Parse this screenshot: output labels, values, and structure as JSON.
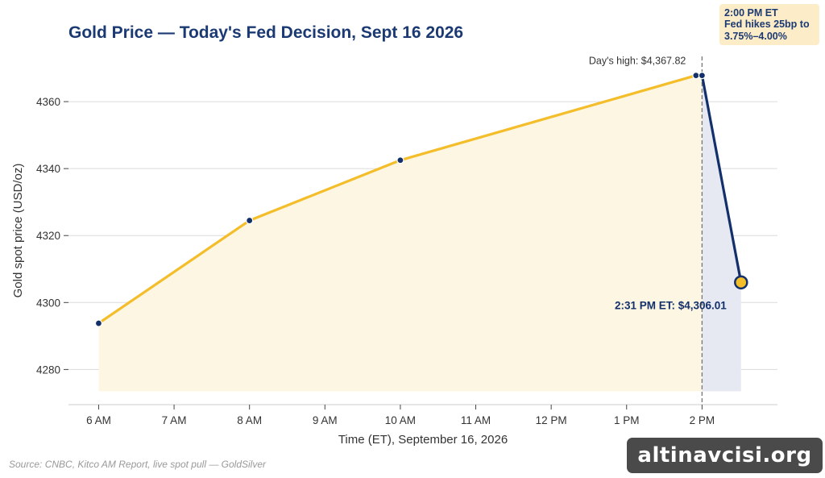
{
  "chart_data": {
    "type": "line",
    "title": "Gold Price — Today's Fed Decision, Sept 16 2026",
    "xlabel": "Time (ET), September 16, 2026",
    "ylabel": "Gold spot price (USD/oz)",
    "x_ticks": [
      {
        "hour": 6,
        "label": "6 AM"
      },
      {
        "hour": 7,
        "label": "7 AM"
      },
      {
        "hour": 8,
        "label": "8 AM"
      },
      {
        "hour": 9,
        "label": "9 AM"
      },
      {
        "hour": 10,
        "label": "10 AM"
      },
      {
        "hour": 11,
        "label": "11 AM"
      },
      {
        "hour": 12,
        "label": "12 PM"
      },
      {
        "hour": 13,
        "label": "1 PM"
      },
      {
        "hour": 14,
        "label": "2 PM"
      }
    ],
    "y_ticks": [
      4280,
      4300,
      4320,
      4340,
      4360
    ],
    "xlim": [
      5.6,
      15.0
    ],
    "ylim": [
      4269.5,
      4373.5
    ],
    "fill_base": 4273.5,
    "pre_series": {
      "name": "",
      "color": "#f4bd2a",
      "points": [
        {
          "hour": 6.0,
          "price": 4293.8
        },
        {
          "hour": 8.0,
          "price": 4324.5
        },
        {
          "hour": 10.0,
          "price": 4342.5
        },
        {
          "hour": 13.92,
          "price": 4367.82
        },
        {
          "hour": 14.0,
          "price": 4367.82
        }
      ]
    },
    "post_series": {
      "name": "",
      "color": "#13306b",
      "points": [
        {
          "hour": 14.0,
          "price": 4367.82
        },
        {
          "hour": 14.517,
          "price": 4306.01
        }
      ]
    },
    "event_line_hour": 14.0,
    "high_label": "Day's high: $4,367.82",
    "latest_label": "2:31 PM ET: $4,306.01",
    "grid": true
  },
  "annotation": {
    "line1": "2:00 PM ET",
    "line2": "Fed hikes 25bp to",
    "line3": "3.75%–4.00%"
  },
  "source": "Source: CNBC, Kitco AM Report, live spot pull — GoldSilver",
  "watermark": "altinavcisi.org",
  "colors": {
    "gold": "#f4bd2a",
    "navy": "#13306b",
    "gold_fill": "#fdf6e3",
    "navy_fill": "#e6e9f2"
  }
}
